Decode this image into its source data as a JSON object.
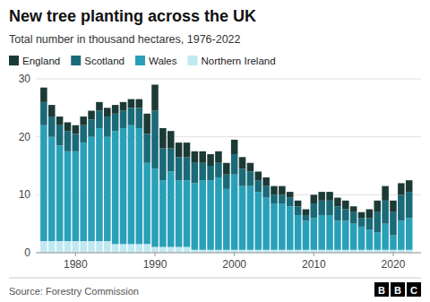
{
  "chart_data": {
    "type": "bar",
    "stacked": true,
    "title": "New tree planting across the UK",
    "subtitle": "Total number in thousand hectares, 1976-2022",
    "source": "Source: Forestry Commission",
    "annotations": [
      "BBC"
    ],
    "x": [
      1976,
      1977,
      1978,
      1979,
      1980,
      1981,
      1982,
      1983,
      1984,
      1985,
      1986,
      1987,
      1988,
      1989,
      1990,
      1991,
      1992,
      1993,
      1994,
      1995,
      1996,
      1997,
      1998,
      1999,
      2000,
      2001,
      2002,
      2003,
      2004,
      2005,
      2006,
      2007,
      2008,
      2009,
      2010,
      2011,
      2012,
      2013,
      2014,
      2015,
      2016,
      2017,
      2018,
      2019,
      2020,
      2021,
      2022
    ],
    "series": [
      {
        "name": "Northern Ireland",
        "color": "#c0e8f2",
        "values": [
          2.0,
          2.0,
          2.0,
          2.0,
          2.0,
          2.0,
          2.0,
          2.0,
          2.0,
          1.5,
          1.5,
          1.5,
          1.5,
          1.5,
          1.0,
          1.0,
          1.0,
          1.0,
          1.0,
          0.5,
          0.5,
          0.5,
          0.5,
          0.5,
          0.5,
          0.5,
          0.5,
          0.5,
          0.5,
          0.5,
          0.5,
          0.5,
          0.5,
          0.5,
          0.5,
          0.5,
          0.5,
          0.5,
          0.5,
          0.5,
          0.5,
          0.5,
          0.5,
          0.5,
          0.5,
          0.5,
          0.5
        ]
      },
      {
        "name": "Wales",
        "color": "#2aa0b8",
        "values": [
          20.0,
          18.0,
          16.5,
          15.5,
          15.5,
          17.0,
          18.0,
          19.5,
          18.0,
          19.5,
          20.0,
          20.5,
          20.0,
          14.0,
          13.5,
          11.5,
          13.0,
          11.5,
          11.5,
          11.5,
          12.0,
          12.0,
          12.5,
          10.5,
          13.0,
          11.0,
          11.0,
          10.0,
          9.0,
          8.0,
          8.0,
          7.5,
          6.0,
          5.0,
          5.5,
          6.0,
          6.0,
          5.0,
          5.0,
          4.5,
          4.0,
          3.5,
          3.0,
          4.5,
          2.5,
          5.0,
          5.5
        ]
      },
      {
        "name": "Scotland",
        "color": "#1a6a78",
        "values": [
          4.0,
          3.5,
          3.5,
          3.5,
          3.0,
          3.0,
          3.0,
          3.0,
          3.5,
          3.0,
          3.0,
          3.0,
          3.5,
          5.0,
          10.0,
          5.5,
          4.0,
          4.0,
          4.0,
          3.5,
          3.0,
          2.5,
          2.5,
          2.5,
          3.5,
          3.0,
          2.5,
          2.0,
          2.0,
          1.5,
          1.5,
          1.5,
          1.5,
          1.0,
          2.5,
          2.5,
          2.5,
          2.5,
          2.0,
          2.0,
          1.5,
          2.0,
          3.5,
          4.0,
          4.0,
          4.5,
          4.5
        ]
      },
      {
        "name": "England",
        "color": "#1c3a35",
        "values": [
          2.5,
          2.0,
          1.5,
          1.5,
          1.5,
          1.5,
          1.5,
          1.5,
          1.5,
          1.5,
          1.5,
          1.5,
          1.5,
          3.5,
          4.5,
          3.5,
          3.0,
          2.5,
          2.5,
          2.0,
          2.0,
          2.0,
          2.0,
          2.0,
          2.5,
          2.0,
          1.5,
          1.5,
          1.5,
          1.5,
          1.5,
          1.0,
          1.0,
          1.0,
          1.5,
          1.5,
          1.5,
          1.5,
          1.5,
          1.0,
          1.0,
          1.5,
          2.0,
          2.5,
          2.0,
          2.0,
          2.0
        ]
      }
    ],
    "xlim": [
      1975.0,
      2023.5
    ],
    "xticks": [
      1980,
      1990,
      2000,
      2010,
      2020
    ],
    "ylim": [
      0,
      30
    ],
    "yticks": [
      0,
      10,
      20,
      30
    ],
    "grid": true,
    "legend": "top"
  }
}
